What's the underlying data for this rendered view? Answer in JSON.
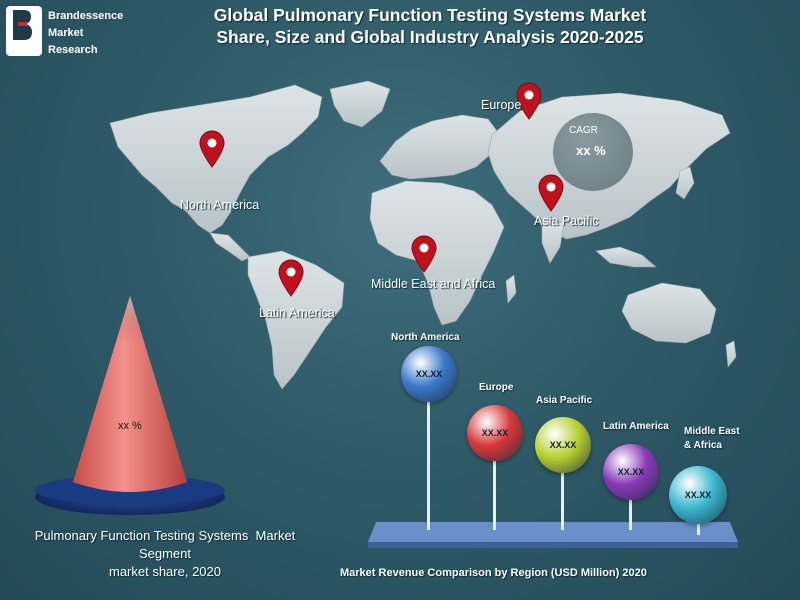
{
  "logo": {
    "line1": "Brandessence",
    "line2": "Market",
    "line3": "Research"
  },
  "title": {
    "line1": "Global Pulmonary Function Testing Systems Market",
    "line2": "Share, Size and Global Industry Analysis 2020-2025"
  },
  "map": {
    "regions": {
      "north_america": "North America",
      "europe": "Europe",
      "asia_pacific": "Asia Pacific",
      "middle_east_africa": "Middle East and Africa",
      "latin_america": "Latin America"
    },
    "cagr": {
      "label": "CAGR",
      "value": "xx %"
    },
    "pin_color": "#c0121e"
  },
  "cone": {
    "value": "xx %",
    "caption_line1": "Pulmonary Function Testing Systems  Market",
    "caption_line2": "Segment",
    "caption_line3": "market share, 2020"
  },
  "revenue": {
    "caption": "Market Revenue Comparison by Region (USD Million) 2020",
    "balls": [
      {
        "label": "North America",
        "value": "XX.XX",
        "color": "#3a78c8"
      },
      {
        "label": "Europe",
        "value": "XX.XX",
        "color": "#d8383a"
      },
      {
        "label": "Asia Pacific",
        "value": "XX.XX",
        "color": "#b8d030"
      },
      {
        "label": "Latin America",
        "value": "XX.XX",
        "color": "#8a3ab8"
      },
      {
        "label_line1": "Middle East",
        "label_line2": "& Africa",
        "value": "XX.XX",
        "color": "#3ab8d0"
      }
    ]
  }
}
